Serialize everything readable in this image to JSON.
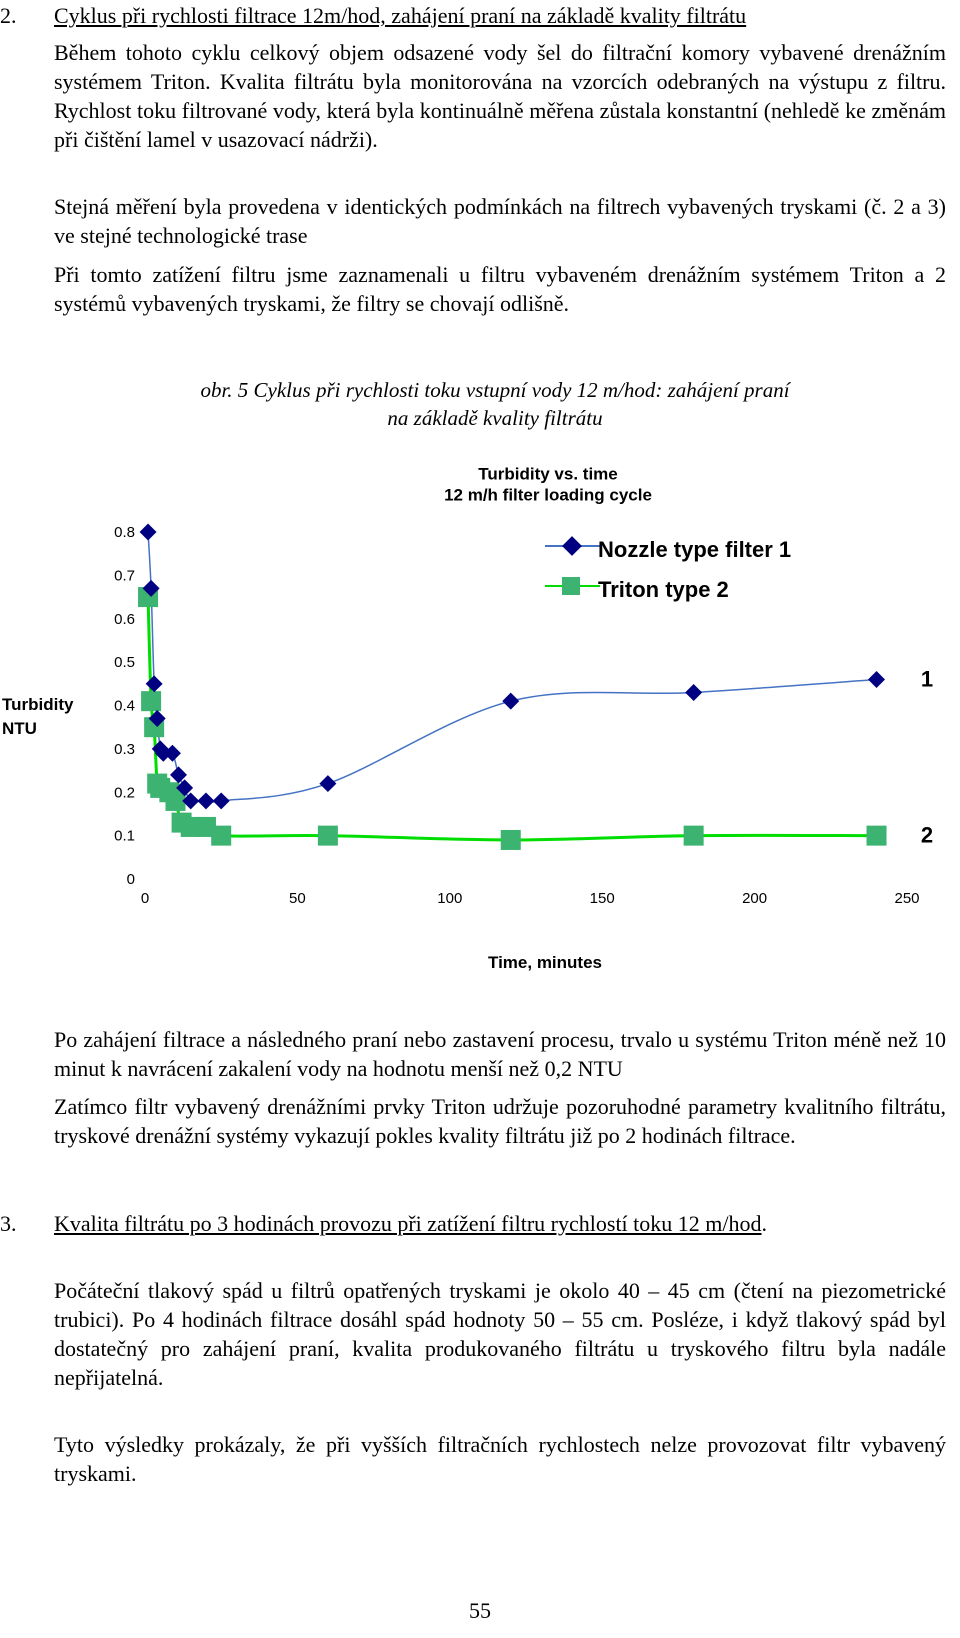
{
  "section2": {
    "number": "2.",
    "title": "Cyklus při rychlosti filtrace 12m/hod, zahájení praní na základě kvality filtrátu",
    "paragraphs": [
      "Během tohoto cyklu celkový objem odsazené vody šel do filtrační komory vybavené drenážním systémem Triton. Kvalita filtrátu byla monitorována na vzorcích odebraných na výstupu z filtru. Rychlost toku filtrované vody, která byla kontinuálně měřena zůstala konstantní (nehledě ke změnám při čištění lamel v usazovací nádrži).",
      "Stejná měření byla provedena v identických podmínkách na filtrech vybavených tryskami (č. 2 a 3) ve stejné technologické trase",
      "Při tomto zatížení filtru jsme zaznamenali u filtru vybaveném drenážním systémem Triton a 2 systémů vybavených tryskami, že filtry se chovají odlišně."
    ]
  },
  "figure": {
    "caption_line1": "obr. 5  Cyklus při rychlosti toku vstupní vody 12 m/hod: zahájení praní",
    "caption_line2": "na základě kvality  filtrátu"
  },
  "chart_data": {
    "type": "scatter",
    "title": "Turbidity vs. time",
    "subtitle": "12 m/h filter loading cycle",
    "xlabel": "Time, minutes",
    "ylabel_line1": "Turbidity",
    "ylabel_line2": "NTU",
    "xlim": [
      0,
      250
    ],
    "ylim": [
      0,
      0.8
    ],
    "x_ticks": [
      "0",
      "50",
      "100",
      "150",
      "200",
      "250"
    ],
    "x_tick_values": [
      0,
      50,
      100,
      150,
      200,
      250
    ],
    "y_ticks": [
      "0",
      "0.1",
      "0.2",
      "0.3",
      "0.4",
      "0.5",
      "0.6",
      "0.7",
      "0.8"
    ],
    "y_tick_values": [
      0,
      0.1,
      0.2,
      0.3,
      0.4,
      0.5,
      0.6,
      0.7,
      0.8
    ],
    "series": [
      {
        "name": "Nozzle type filter 1",
        "end_label": "1",
        "color": "#000080",
        "line_color": "#4472C4",
        "marker": "diamond",
        "x": [
          1,
          2,
          3,
          4,
          5,
          6,
          9,
          11,
          13,
          15,
          20,
          25,
          60,
          120,
          180,
          240
        ],
        "y": [
          0.8,
          0.67,
          0.45,
          0.37,
          0.3,
          0.29,
          0.29,
          0.24,
          0.21,
          0.18,
          0.18,
          0.18,
          0.22,
          0.41,
          0.43,
          0.46
        ]
      },
      {
        "name": "Triton type  2",
        "end_label": "2",
        "color": "#3CB371",
        "line_color": "#00DD00",
        "marker": "square",
        "x": [
          1,
          2,
          3,
          4,
          5,
          8,
          10,
          12,
          15,
          20,
          25,
          60,
          120,
          180,
          240
        ],
        "y": [
          0.65,
          0.41,
          0.35,
          0.22,
          0.21,
          0.2,
          0.18,
          0.13,
          0.12,
          0.12,
          0.1,
          0.1,
          0.09,
          0.1,
          0.1
        ]
      }
    ]
  },
  "after_chart": {
    "paragraphs": [
      "Po zahájení filtrace a následného praní nebo zastavení procesu, trvalo u systému Triton méně než 10 minut k navrácení zakalení vody na hodnotu menší než 0,2 NTU",
      "Zatímco filtr vybavený drenážními prvky Triton udržuje pozoruhodné parametry kvalitního filtrátu, tryskové drenážní systémy vykazují pokles kvality filtrátu již po 2 hodinách filtrace."
    ]
  },
  "section3": {
    "number": "3.",
    "title": "Kvalita filtrátu po 3 hodinách provozu při zatížení filtru rychlostí toku 12 m/hod",
    "title_end": ".",
    "paragraphs": [
      "Počáteční tlakový spád u filtrů opatřených tryskami je okolo 40 – 45 cm (čtení na piezometrické trubici). Po 4 hodinách filtrace dosáhl spád hodnoty 50 – 55 cm. Posléze, i když tlakový spád byl dostatečný pro zahájení praní, kvalita produkovaného filtrátu u tryskového filtru byla nadále nepřijatelná.",
      "Tyto výsledky prokázaly, že při vyšších filtračních rychlostech nelze provozovat filtr vybavený tryskami."
    ]
  },
  "page_number": "55"
}
